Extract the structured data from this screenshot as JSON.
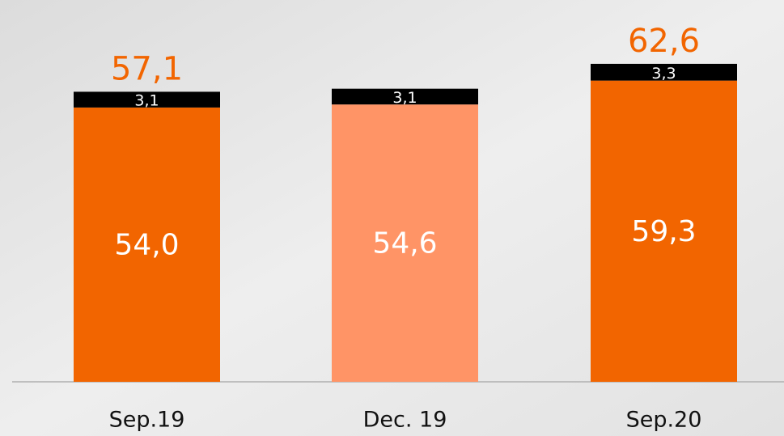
{
  "chart_data": {
    "type": "stacked-bar",
    "categories": [
      "Sep.19",
      "Dec. 19",
      "Sep.20"
    ],
    "series": [
      {
        "colors": [
          "#f26500",
          "#ff9466",
          "#f26500"
        ],
        "values": [
          54.0,
          54.6,
          59.3
        ],
        "value_labels": [
          "54,0",
          "54,6",
          "59,3"
        ]
      },
      {
        "color": "#000000",
        "values": [
          3.1,
          3.1,
          3.3
        ],
        "value_labels": [
          "3,1",
          "3,1",
          "3,3"
        ]
      }
    ],
    "totals": [
      57.1,
      null,
      62.6
    ],
    "total_labels": [
      "57,1",
      null,
      "62,6"
    ],
    "total_color": "#f26500",
    "ylim": [
      0,
      68
    ]
  }
}
